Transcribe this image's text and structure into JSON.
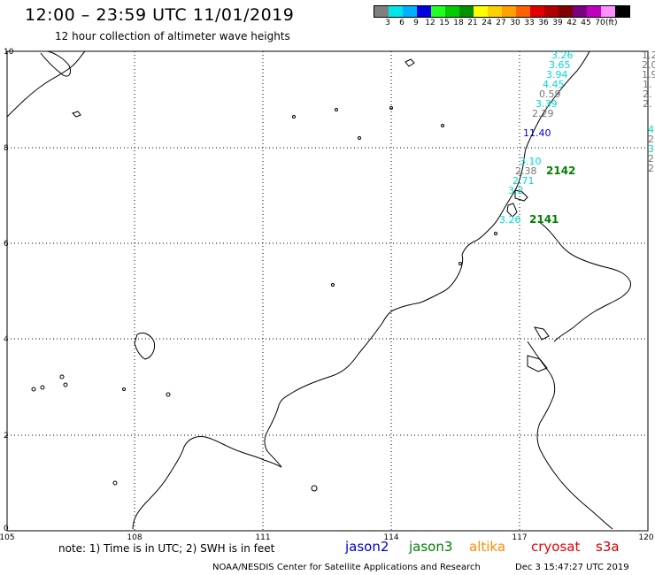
{
  "title": "12:00 – 23:59 UTC 11/01/2019",
  "subtitle": "12 hour collection of altimeter wave heights",
  "scale": {
    "colors": [
      "#7f7f7f",
      "#00e5e5",
      "#00b0ff",
      "#0000e0",
      "#22ff22",
      "#00cc00",
      "#009000",
      "#ffff00",
      "#ffd000",
      "#ffa000",
      "#ff6000",
      "#e00000",
      "#b00000",
      "#800000",
      "#7a0080",
      "#c000c0",
      "#ff90ff",
      "#000000"
    ],
    "labels": [
      "3",
      "6",
      "9",
      "12",
      "15",
      "18",
      "21",
      "24",
      "27",
      "30",
      "33",
      "36",
      "39",
      "42",
      "45",
      "70"
    ],
    "unit": "(ft)"
  },
  "axes": {
    "lon_labels": [
      "105",
      "108",
      "111",
      "114",
      "117",
      "120"
    ],
    "lat_labels": [
      "10",
      "8",
      "6",
      "4",
      "2",
      "0"
    ]
  },
  "observations": [
    {
      "text": "3.26",
      "color": "#00d8d8"
    },
    {
      "text": "3.65",
      "color": "#00d8d8"
    },
    {
      "text": "3.94",
      "color": "#00d8d8"
    },
    {
      "text": "4.45",
      "color": "#00d8d8"
    },
    {
      "text": "0.59",
      "color": "#777777"
    },
    {
      "text": "3.39",
      "color": "#00d8d8"
    },
    {
      "text": "2.29",
      "color": "#777777"
    },
    {
      "text": "11.40",
      "color": "#0000cc"
    },
    {
      "text": "3.10",
      "color": "#00d8d8"
    },
    {
      "text": "2.38",
      "color": "#777777"
    },
    {
      "text": "2142",
      "color": "#008000"
    },
    {
      "text": "2.71",
      "color": "#00d8d8"
    },
    {
      "text": "3.2",
      "color": "#00d8d8"
    },
    {
      "text": "3.26",
      "color": "#00d8d8"
    },
    {
      "text": "2141",
      "color": "#008000"
    }
  ],
  "edge_values": [
    {
      "text": "1.2",
      "color": "#777777"
    },
    {
      "text": "2.0",
      "color": "#777777"
    },
    {
      "text": "1.9",
      "color": "#777777"
    },
    {
      "text": "1.",
      "color": "#777777"
    },
    {
      "text": "2.",
      "color": "#777777"
    },
    {
      "text": "2.",
      "color": "#777777"
    },
    {
      "text": "4",
      "color": "#00d8d8"
    },
    {
      "text": "2",
      "color": "#777777"
    },
    {
      "text": "3",
      "color": "#00d8d8"
    },
    {
      "text": "2",
      "color": "#777777"
    },
    {
      "text": "2",
      "color": "#777777"
    }
  ],
  "note": "note:  1)  Time is in UTC;  2)  SWH is in feet",
  "satellites": [
    {
      "name": "jason2",
      "color": "#0000cc"
    },
    {
      "name": "jason3",
      "color": "#008000"
    },
    {
      "name": "altika",
      "color": "#ff8c00"
    },
    {
      "name": "cryosat",
      "color": "#ee0000"
    },
    {
      "name": "s3a",
      "color": "#cc0000"
    }
  ],
  "credit": "NOAA/NESDIS Center for Satellite Applications and Research",
  "credit_time": "Dec  3 15:47:27 UTC 2019"
}
